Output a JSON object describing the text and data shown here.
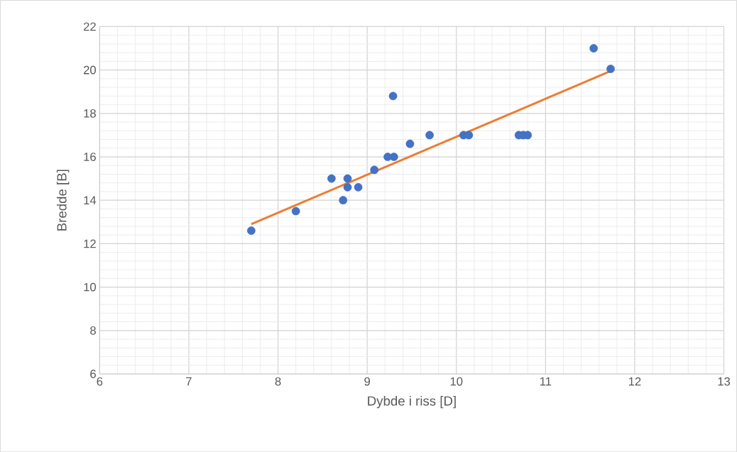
{
  "chart_data": {
    "type": "scatter",
    "xlabel": "Dybde i riss [D]",
    "ylabel": "Bredde [B]",
    "xlim": [
      6,
      13
    ],
    "ylim": [
      6,
      22
    ],
    "xticks": [
      6,
      7,
      8,
      9,
      10,
      11,
      12,
      13
    ],
    "yticks": [
      6,
      8,
      10,
      12,
      14,
      16,
      18,
      20,
      22
    ],
    "grid": true,
    "marker": "circle",
    "series": [
      {
        "color": "#4472c4",
        "x": [
          7.7,
          8.2,
          8.6,
          8.73,
          8.78,
          8.78,
          8.9,
          9.08,
          9.23,
          9.3,
          9.29,
          9.48,
          9.7,
          10.08,
          10.14,
          10.7,
          10.75,
          10.8,
          11.54,
          11.73
        ],
        "values": [
          12.6,
          13.5,
          15.0,
          14.0,
          15.0,
          14.6,
          14.6,
          15.4,
          16.0,
          16.0,
          18.8,
          16.6,
          17.0,
          17.0,
          17.0,
          17.0,
          17.0,
          17.0,
          21.0,
          20.05
        ]
      },
      {
        "type": "line",
        "color": "#ed7d31",
        "marker": "none",
        "line_style": "solid",
        "x": [
          7.7,
          11.73
        ],
        "values": [
          12.9,
          19.95
        ]
      }
    ]
  }
}
